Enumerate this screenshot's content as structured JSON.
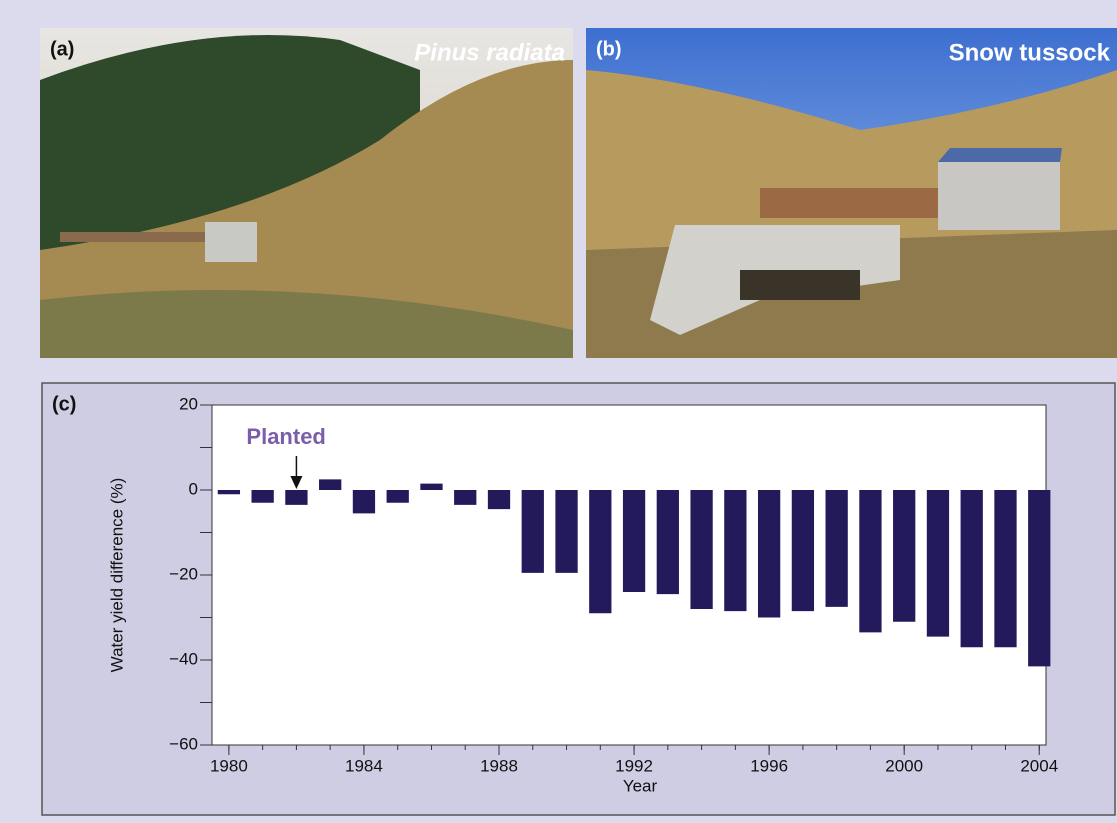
{
  "panels": {
    "a": {
      "label": "(a)",
      "caption": "Pinus radiata"
    },
    "b": {
      "label": "(b)",
      "caption": "Snow tussock"
    },
    "c": {
      "label": "(c)"
    }
  },
  "chart_data": {
    "type": "bar",
    "x": [
      1980,
      1981,
      1982,
      1983,
      1984,
      1985,
      1986,
      1987,
      1988,
      1989,
      1990,
      1991,
      1992,
      1993,
      1994,
      1995,
      1996,
      1997,
      1998,
      1999,
      2000,
      2001,
      2002,
      2003,
      2004
    ],
    "values": [
      -1,
      -3,
      -3.5,
      2.5,
      -5.5,
      -3,
      1.5,
      -3.5,
      -4.5,
      -19.5,
      -19.5,
      -29,
      -24,
      -24.5,
      -28,
      -28.5,
      -30,
      -28.5,
      -27.5,
      -33.5,
      -31,
      -34.5,
      -37,
      -37,
      -41.5
    ],
    "color": "#231a5c",
    "xlabel": "Year",
    "ylabel": "Water yield difference (%)",
    "xlim": [
      1979.5,
      2004.2
    ],
    "xticks": [
      1980,
      1984,
      1988,
      1992,
      1996,
      2000,
      2004
    ],
    "ylim": [
      -60,
      20
    ],
    "yticks": [
      {
        "value": -60,
        "label": "−60"
      },
      {
        "value": -40,
        "label": "−40"
      },
      {
        "value": -20,
        "label": "−20"
      },
      0,
      20
    ],
    "yminor_ticks": [
      -50,
      -30,
      -10,
      10
    ],
    "annotations": [
      {
        "text": "Planted",
        "x": 1982
      }
    ]
  }
}
